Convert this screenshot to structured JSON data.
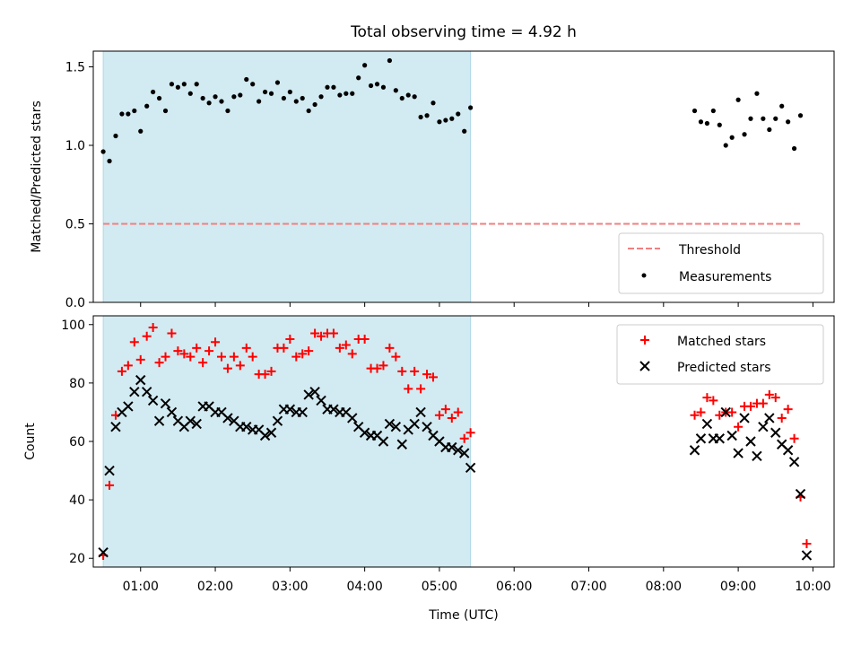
{
  "chart_data": [
    {
      "type": "scatter",
      "title": "Total observing time = 4.92 h",
      "ylabel": "Matched/Predicted stars",
      "xlabel": "",
      "xlim": [
        "00:22",
        "10:17"
      ],
      "ylim": [
        0,
        1.6
      ],
      "yticks": [
        "0.0",
        "0.5",
        "1.0",
        "1.5"
      ],
      "grid": false,
      "legend_position": "lower-right",
      "shaded_span": {
        "start": "00:30",
        "end": "05:25",
        "color": "#add8e6"
      },
      "threshold": {
        "name": "Threshold",
        "value": 0.5,
        "x_start": "00:30",
        "x_end": "09:50",
        "color": "#f08080"
      },
      "series": [
        {
          "name": "Measurements",
          "color": "#000000",
          "marker": "dot",
          "x": [
            "00:30",
            "00:35",
            "00:40",
            "00:45",
            "00:50",
            "00:55",
            "01:00",
            "01:05",
            "01:10",
            "01:15",
            "01:20",
            "01:25",
            "01:30",
            "01:35",
            "01:40",
            "01:45",
            "01:50",
            "01:55",
            "02:00",
            "02:05",
            "02:10",
            "02:15",
            "02:20",
            "02:25",
            "02:30",
            "02:35",
            "02:40",
            "02:45",
            "02:50",
            "02:55",
            "03:00",
            "03:05",
            "03:10",
            "03:15",
            "03:20",
            "03:25",
            "03:30",
            "03:35",
            "03:40",
            "03:45",
            "03:50",
            "03:55",
            "04:00",
            "04:05",
            "04:10",
            "04:15",
            "04:20",
            "04:25",
            "04:30",
            "04:35",
            "04:40",
            "04:45",
            "04:50",
            "04:55",
            "05:00",
            "05:05",
            "05:10",
            "05:15",
            "05:20",
            "05:25",
            "08:25",
            "08:30",
            "08:35",
            "08:40",
            "08:45",
            "08:50",
            "08:55",
            "09:00",
            "09:05",
            "09:10",
            "09:15",
            "09:20",
            "09:25",
            "09:30",
            "09:35",
            "09:40",
            "09:45",
            "09:50"
          ],
          "y": [
            0.96,
            0.9,
            1.06,
            1.2,
            1.2,
            1.22,
            1.09,
            1.25,
            1.34,
            1.3,
            1.22,
            1.39,
            1.37,
            1.39,
            1.33,
            1.39,
            1.3,
            1.27,
            1.31,
            1.28,
            1.22,
            1.31,
            1.32,
            1.42,
            1.39,
            1.28,
            1.34,
            1.33,
            1.4,
            1.3,
            1.34,
            1.28,
            1.3,
            1.22,
            1.26,
            1.31,
            1.37,
            1.37,
            1.32,
            1.33,
            1.33,
            1.43,
            1.51,
            1.38,
            1.39,
            1.37,
            1.54,
            1.35,
            1.3,
            1.32,
            1.31,
            1.18,
            1.19,
            1.27,
            1.15,
            1.16,
            1.17,
            1.2,
            1.09,
            1.24,
            1.22,
            1.15,
            1.14,
            1.22,
            1.13,
            1.0,
            1.05,
            1.29,
            1.07,
            1.17,
            1.33,
            1.17,
            1.1,
            1.17,
            1.25,
            1.15,
            0.98,
            1.19
          ]
        }
      ]
    },
    {
      "type": "scatter",
      "title": "",
      "ylabel": "Count",
      "xlabel": "Time (UTC)",
      "xlim": [
        "00:22",
        "10:17"
      ],
      "ylim": [
        17,
        103
      ],
      "yticks": [
        "20",
        "40",
        "60",
        "80",
        "100"
      ],
      "xticks": [
        "01:00",
        "02:00",
        "03:00",
        "04:00",
        "05:00",
        "06:00",
        "07:00",
        "08:00",
        "09:00",
        "10:00"
      ],
      "grid": false,
      "legend_position": "top-right",
      "shaded_span": {
        "start": "00:30",
        "end": "05:25",
        "color": "#add8e6"
      },
      "series": [
        {
          "name": "Matched stars",
          "color": "#ff0000",
          "marker": "plus",
          "x": [
            "00:30",
            "00:35",
            "00:40",
            "00:45",
            "00:50",
            "00:55",
            "01:00",
            "01:05",
            "01:10",
            "01:15",
            "01:20",
            "01:25",
            "01:30",
            "01:35",
            "01:40",
            "01:45",
            "01:50",
            "01:55",
            "02:00",
            "02:05",
            "02:10",
            "02:15",
            "02:20",
            "02:25",
            "02:30",
            "02:35",
            "02:40",
            "02:45",
            "02:50",
            "02:55",
            "03:00",
            "03:05",
            "03:10",
            "03:15",
            "03:20",
            "03:25",
            "03:30",
            "03:35",
            "03:40",
            "03:45",
            "03:50",
            "03:55",
            "04:00",
            "04:05",
            "04:10",
            "04:15",
            "04:20",
            "04:25",
            "04:30",
            "04:35",
            "04:40",
            "04:45",
            "04:50",
            "04:55",
            "05:00",
            "05:05",
            "05:10",
            "05:15",
            "05:20",
            "05:25",
            "08:25",
            "08:30",
            "08:35",
            "08:40",
            "08:45",
            "08:50",
            "08:55",
            "09:00",
            "09:05",
            "09:10",
            "09:15",
            "09:20",
            "09:25",
            "09:30",
            "09:35",
            "09:40",
            "09:45",
            "09:50",
            "09:55"
          ],
          "y": [
            21,
            45,
            69,
            84,
            86,
            94,
            88,
            96,
            99,
            87,
            89,
            97,
            91,
            90,
            89,
            92,
            87,
            91,
            94,
            89,
            85,
            89,
            86,
            92,
            89,
            83,
            83,
            84,
            92,
            92,
            95,
            89,
            90,
            91,
            97,
            96,
            97,
            97,
            92,
            93,
            90,
            95,
            95,
            85,
            85,
            86,
            92,
            89,
            84,
            78,
            84,
            78,
            83,
            82,
            69,
            71,
            68,
            70,
            61,
            63,
            69,
            70,
            75,
            74,
            69,
            70,
            70,
            65,
            72,
            72,
            73,
            73,
            76,
            75,
            68,
            71,
            61,
            41,
            25
          ]
        },
        {
          "name": "Predicted stars",
          "color": "#000000",
          "marker": "x",
          "x": [
            "00:30",
            "00:35",
            "00:40",
            "00:45",
            "00:50",
            "00:55",
            "01:00",
            "01:05",
            "01:10",
            "01:15",
            "01:20",
            "01:25",
            "01:30",
            "01:35",
            "01:40",
            "01:45",
            "01:50",
            "01:55",
            "02:00",
            "02:05",
            "02:10",
            "02:15",
            "02:20",
            "02:25",
            "02:30",
            "02:35",
            "02:40",
            "02:45",
            "02:50",
            "02:55",
            "03:00",
            "03:05",
            "03:10",
            "03:15",
            "03:20",
            "03:25",
            "03:30",
            "03:35",
            "03:40",
            "03:45",
            "03:50",
            "03:55",
            "04:00",
            "04:05",
            "04:10",
            "04:15",
            "04:20",
            "04:25",
            "04:30",
            "04:35",
            "04:40",
            "04:45",
            "04:50",
            "04:55",
            "05:00",
            "05:05",
            "05:10",
            "05:15",
            "05:20",
            "05:25",
            "08:25",
            "08:30",
            "08:35",
            "08:40",
            "08:45",
            "08:50",
            "08:55",
            "09:00",
            "09:05",
            "09:10",
            "09:15",
            "09:20",
            "09:25",
            "09:30",
            "09:35",
            "09:40",
            "09:45",
            "09:50",
            "09:55"
          ],
          "y": [
            22,
            50,
            65,
            70,
            72,
            77,
            81,
            77,
            74,
            67,
            73,
            70,
            67,
            65,
            67,
            66,
            72,
            72,
            70,
            70,
            68,
            67,
            65,
            65,
            64,
            64,
            62,
            63,
            67,
            71,
            71,
            70,
            70,
            76,
            77,
            74,
            71,
            71,
            70,
            70,
            68,
            65,
            63,
            62,
            62,
            60,
            66,
            65,
            59,
            64,
            66,
            70,
            65,
            62,
            60,
            58,
            58,
            57,
            56,
            51,
            57,
            61,
            66,
            61,
            61,
            70,
            62,
            56,
            68,
            60,
            55,
            65,
            68,
            63,
            59,
            57,
            53,
            42,
            21
          ]
        }
      ]
    }
  ]
}
